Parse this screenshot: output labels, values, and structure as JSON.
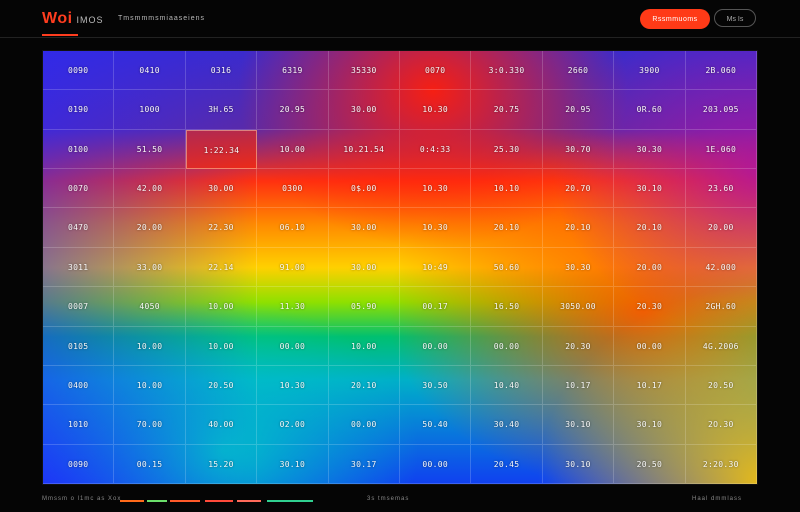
{
  "header": {
    "logo": "Woi",
    "logo_sub": "IMOS",
    "subtitle": "Tmsmmmsmiaaseiens",
    "primary_button": "Rssmmuoms",
    "secondary_button": "Ms Is"
  },
  "heatmap": {
    "highlight_cell": [
      2,
      2
    ],
    "rows": [
      [
        "0090",
        "0410",
        "0316",
        "6319",
        "35330",
        "0070",
        "3:0.330",
        "2660",
        "3900",
        "2B.060"
      ],
      [
        "0190",
        "1000",
        "3H.65",
        "20.95",
        "30.00",
        "10.30",
        "20.75",
        "20.95",
        "0R.60",
        "203.095"
      ],
      [
        "0100",
        "51.50",
        "1:22.34",
        "10.00",
        "10.21.54",
        "0:4:33",
        "25.30",
        "30.70",
        "30.30",
        "1E.060"
      ],
      [
        "0070",
        "42.00",
        "30.00",
        "0300",
        "0$.00",
        "10.30",
        "10.10",
        "20.70",
        "30.10",
        "23.60"
      ],
      [
        "0470",
        "20.00",
        "22.30",
        "06.10",
        "30.00",
        "10.30",
        "20.10",
        "20.10",
        "20.10",
        "20.00"
      ],
      [
        "3011",
        "33.00",
        "22.14",
        "91.00",
        "30.00",
        "10:49",
        "50.60",
        "30.30",
        "20.00",
        "42.000"
      ],
      [
        "0007",
        "4050",
        "10.00",
        "11.30",
        "05.90",
        "00.17",
        "16.50",
        "3050.00",
        "20.30",
        "2GH.60"
      ],
      [
        "0105",
        "10.00",
        "10.00",
        "00.00",
        "10.00",
        "00.00",
        "00.00",
        "20.30",
        "00.00",
        "4G.2006"
      ],
      [
        "0400",
        "10.00",
        "20.50",
        "10.30",
        "20.10",
        "30.50",
        "10.40",
        "10.17",
        "10.17",
        "20.50"
      ],
      [
        "1010",
        "70.00",
        "40.00",
        "02.00",
        "00.00",
        "50.40",
        "30.40",
        "30.10",
        "30.10",
        "2O.30"
      ],
      [
        "0090",
        "00.15",
        "15.20",
        "30.10",
        "30.17",
        "00.00",
        "20.45",
        "30.10",
        "20.50",
        "2:20.30"
      ]
    ]
  },
  "legend": {
    "label": "Mmssm o l1mc as Xox",
    "items": [
      {
        "color": "#ff6a1a"
      },
      {
        "color": "#6be06b"
      },
      {
        "color": "#ff5a2a"
      },
      {
        "color": "#ff4a3a"
      },
      {
        "color": "#ff6a5a"
      },
      {
        "color": "#30d090"
      }
    ],
    "mid_text": "3s   tmsemas",
    "right_text": "Haal dmmlass"
  }
}
